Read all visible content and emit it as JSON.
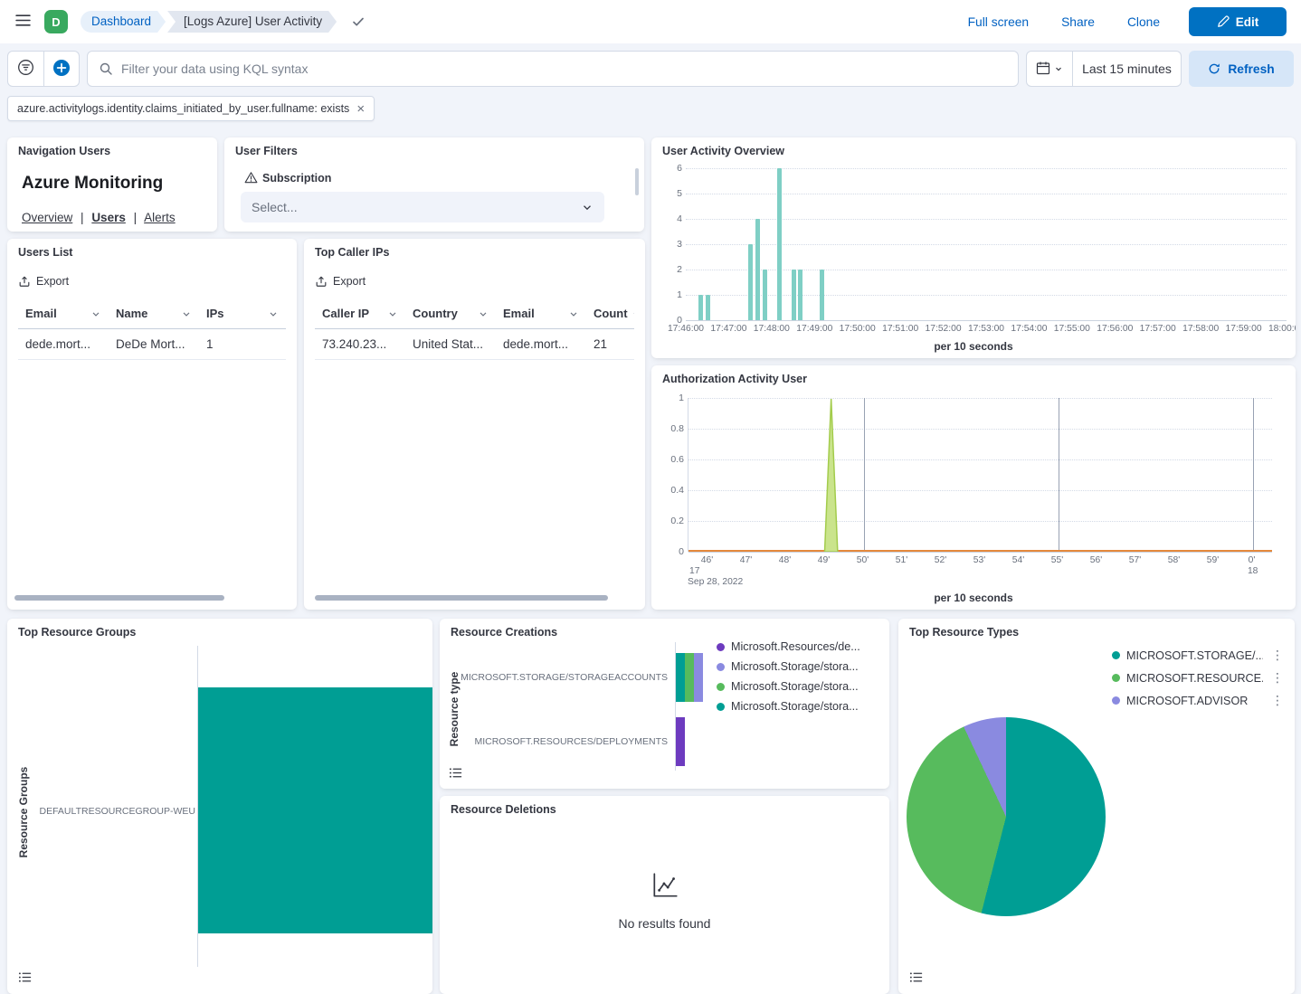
{
  "icons": {
    "close": "×",
    "more": "⋮"
  },
  "theme": {
    "primary": "#0071C2",
    "link": "#0061C2",
    "page_bg": "#F1F4FA",
    "panel_bg": "#FFFFFF",
    "border": "#D3DAE6",
    "teal": "#009E94",
    "green": "#57BB5D",
    "purple": "#6D3BBF",
    "lavender": "#8A8AE0",
    "bar_teal_light": "#7FCFC5",
    "spike_fill": "#CAE48C",
    "spike_stroke": "#A3CC4C",
    "baseline_orange": "#E5893C"
  },
  "header": {
    "avatar_initial": "D",
    "avatar_color": "#39A95F",
    "breadcrumbs": [
      "Dashboard",
      "[Logs Azure] User Activity"
    ],
    "actions": {
      "full_screen": "Full screen",
      "share": "Share",
      "clone": "Clone",
      "edit": "Edit"
    }
  },
  "query_bar": {
    "search_placeholder": "Filter your data using KQL syntax",
    "time_range": "Last 15 minutes",
    "refresh_label": "Refresh",
    "filter_pill": "azure.activitylogs.identity.claims_initiated_by_user.fullname: exists"
  },
  "panels": {
    "navigation_users": {
      "title": "Navigation Users",
      "heading": "Azure Monitoring",
      "links": [
        "Overview",
        "Users",
        "Alerts"
      ],
      "active_link": "Users"
    },
    "user_filters": {
      "title": "User Filters",
      "control_label": "Subscription",
      "select_placeholder": "Select..."
    },
    "user_activity_overview": {
      "title": "User Activity Overview",
      "axis_title": "per 10 seconds"
    },
    "users_list": {
      "title": "Users List",
      "export_label": "Export",
      "columns": [
        "Email",
        "Name",
        "IPs"
      ],
      "rows": [
        [
          "dede.mort...",
          "DeDe Mort...",
          "1"
        ]
      ]
    },
    "top_caller_ips": {
      "title": "Top Caller IPs",
      "export_label": "Export",
      "columns": [
        "Caller IP",
        "Country",
        "Email",
        "Count"
      ],
      "rows": [
        [
          "73.240.23...",
          "United Stat...",
          "dede.mort...",
          "21"
        ]
      ]
    },
    "authorization_activity": {
      "title": "Authorization Activity User",
      "axis_title": "per 10 seconds",
      "date_hour_left": "17",
      "date_hour_right": "18",
      "date_label": "Sep 28, 2022"
    },
    "top_resource_groups": {
      "title": "Top Resource Groups",
      "y_axis_label": "Resource Groups"
    },
    "resource_creations": {
      "title": "Resource Creations",
      "y_axis_label": "Resource type"
    },
    "resource_deletions": {
      "title": "Resource Deletions",
      "empty_message": "No results found"
    },
    "top_resource_types": {
      "title": "Top Resource Types"
    }
  },
  "chart_data": [
    {
      "id": "user_activity_overview",
      "type": "bar",
      "title": "User Activity Overview",
      "xlabel": "per 10 seconds",
      "ylabel": "",
      "ylim": [
        0,
        6
      ],
      "y_ticks": [
        0,
        1,
        2,
        3,
        4,
        5,
        6
      ],
      "x_domain": [
        "17:46:00",
        "18:00:00"
      ],
      "x_tick_labels": [
        "17:46:00",
        "17:47:00",
        "17:48:00",
        "17:49:00",
        "17:50:00",
        "17:51:00",
        "17:52:00",
        "17:53:00",
        "17:54:00",
        "17:55:00",
        "17:56:00",
        "17:57:00",
        "17:58:00",
        "17:59:00",
        "18:00:00"
      ],
      "bar_interval_seconds": 10,
      "color": "#7FCFC5",
      "points": [
        {
          "x": "17:46:20",
          "y": 1
        },
        {
          "x": "17:46:30",
          "y": 1
        },
        {
          "x": "17:47:30",
          "y": 3
        },
        {
          "x": "17:47:40",
          "y": 4
        },
        {
          "x": "17:47:50",
          "y": 2
        },
        {
          "x": "17:48:10",
          "y": 6
        },
        {
          "x": "17:48:30",
          "y": 2
        },
        {
          "x": "17:48:40",
          "y": 2
        },
        {
          "x": "17:49:10",
          "y": 2
        }
      ],
      "grid": true,
      "legend": false
    },
    {
      "id": "authorization_activity_user",
      "type": "area",
      "title": "Authorization Activity User",
      "xlabel": "per 10 seconds",
      "ylim": [
        0,
        1
      ],
      "y_ticks": [
        0,
        0.2,
        0.4,
        0.6,
        0.8,
        1
      ],
      "x_tick_labels": [
        "46'",
        "47'",
        "48'",
        "49'",
        "50'",
        "51'",
        "52'",
        "53'",
        "54'",
        "55'",
        "56'",
        "57'",
        "58'",
        "59'",
        "0'"
      ],
      "x_context": {
        "hour_left": "17",
        "hour_right": "18",
        "date": "Sep 28, 2022"
      },
      "highlight_gridlines": [
        "50'",
        "55'",
        "0'"
      ],
      "baseline_color": "#E5893C",
      "series": [
        {
          "name": "Authorization activity",
          "fill": "#CAE48C",
          "stroke": "#A3CC4C",
          "points": [
            {
              "x": "17:49:10",
              "y": 1
            }
          ]
        }
      ],
      "grid": true,
      "legend": false
    },
    {
      "id": "top_resource_groups",
      "type": "bar",
      "orientation": "horizontal",
      "title": "Top Resource Groups",
      "ylabel": "Resource Groups",
      "categories": [
        "DEFAULTRESOURCEGROUP-WEU"
      ],
      "values": [
        1
      ],
      "color": "#009E94",
      "x_axis_visible": false
    },
    {
      "id": "resource_creations",
      "type": "bar",
      "orientation": "horizontal",
      "stacked": true,
      "title": "Resource Creations",
      "ylabel": "Resource type",
      "categories": [
        "MICROSOFT.STORAGE/STORAGEACCOUNTS",
        "MICROSOFT.RESOURCES/DEPLOYMENTS"
      ],
      "series": [
        {
          "name": "Microsoft.Resources/de...",
          "color": "#6D3BBF",
          "values": [
            0,
            1
          ]
        },
        {
          "name": "Microsoft.Storage/stora...",
          "color": "#8A8AE0",
          "values": [
            1,
            0
          ]
        },
        {
          "name": "Microsoft.Storage/stora...",
          "color": "#57BB5D",
          "values": [
            1,
            0
          ]
        },
        {
          "name": "Microsoft.Storage/stora...",
          "color": "#009E94",
          "values": [
            1,
            0
          ]
        }
      ],
      "legend_position": "right",
      "x_axis_visible": false
    },
    {
      "id": "top_resource_types",
      "type": "pie",
      "title": "Top Resource Types",
      "unit": "percent_estimated",
      "slices": [
        {
          "label": "MICROSOFT.STORAGE/...",
          "value": 54,
          "color": "#009E94"
        },
        {
          "label": "MICROSOFT.RESOURCE...",
          "value": 39,
          "color": "#57BB5D"
        },
        {
          "label": "MICROSOFT.ADVISOR",
          "value": 7,
          "color": "#8A8AE0"
        }
      ],
      "legend_position": "right"
    }
  ]
}
